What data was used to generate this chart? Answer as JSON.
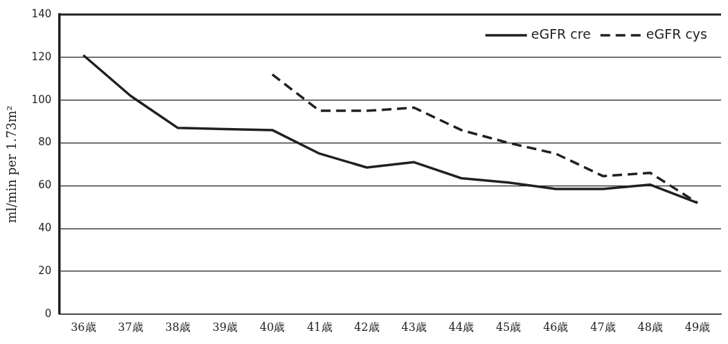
{
  "chart_data": {
    "type": "line",
    "ylabel": "ml/min per 1.73m²",
    "categories": [
      "36歳",
      "37歳",
      "38歳",
      "39歳",
      "40歳",
      "41歳",
      "42歳",
      "43歳",
      "44歳",
      "45歳",
      "46歳",
      "47歳",
      "48歳",
      "49歳"
    ],
    "series": [
      {
        "name": "eGFR cre",
        "color": "#231f20",
        "line_style": "solid",
        "values": [
          121,
          102,
          87,
          86.5,
          86,
          75,
          68.5,
          71,
          63.5,
          61.5,
          58.5,
          58.5,
          60.5,
          52
        ]
      },
      {
        "name": "eGFR cys",
        "color": "#231f20",
        "line_style": "dashed",
        "values": [
          null,
          null,
          null,
          null,
          112,
          95,
          95,
          96.5,
          86,
          80,
          75,
          64.5,
          66,
          52
        ]
      }
    ],
    "ylim": [
      0,
      140
    ],
    "yticks": [
      0,
      20,
      40,
      60,
      80,
      100,
      120,
      140
    ],
    "grid": "y",
    "legend": "top right",
    "marker": "none"
  }
}
